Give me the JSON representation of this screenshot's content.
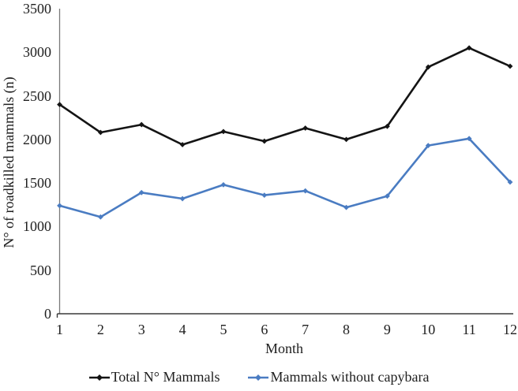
{
  "chart_data": {
    "type": "line",
    "x": [
      1,
      2,
      3,
      4,
      5,
      6,
      7,
      8,
      9,
      10,
      11,
      12
    ],
    "xlabel": "Month",
    "ylabel": "N° of roadkilled mammals (n)",
    "ylim": [
      0,
      3500
    ],
    "y_ticks": [
      0,
      500,
      1000,
      1500,
      2000,
      2500,
      3000,
      3500
    ],
    "grid": false,
    "legend_position": "bottom",
    "series": [
      {
        "name": "Total N° Mammals",
        "color": "#141414",
        "marker": "diamond",
        "values": [
          2400,
          2080,
          2170,
          1940,
          2090,
          1980,
          2130,
          2000,
          2150,
          2830,
          3050,
          2840
        ]
      },
      {
        "name": "Mammals without capybara",
        "color": "#4a7cc2",
        "marker": "diamond",
        "values": [
          1240,
          1110,
          1390,
          1320,
          1480,
          1360,
          1410,
          1220,
          1350,
          1930,
          2010,
          1510
        ]
      }
    ],
    "axis_color": "#7a7a7a",
    "x_axis_color": "#3a3a3a",
    "text_color": "#1f1f1f"
  }
}
